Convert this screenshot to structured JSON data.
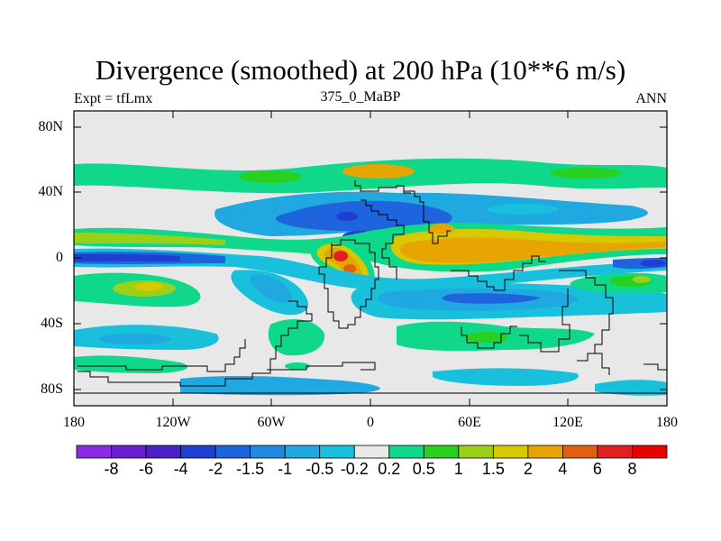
{
  "title": "Divergence (smoothed) at 200 hPa (10**6 m/s)",
  "subtitle_left": "Expt = tfLmx",
  "subtitle_center": "375_0_MaBP",
  "subtitle_right": "ANN",
  "y_axis_labels": [
    "80N",
    "40N",
    "0",
    "40S",
    "80S"
  ],
  "x_axis_labels": [
    "180",
    "120W",
    "60W",
    "0",
    "60E",
    "120E",
    "180"
  ],
  "colorbar": {
    "labels": [
      "-8",
      "-6",
      "-4",
      "-2",
      "-1.5",
      "-1",
      "-0.5",
      "-0.2",
      "0.2",
      "0.5",
      "1",
      "1.5",
      "2",
      "4",
      "6",
      "8"
    ],
    "colors": [
      "#8a2be2",
      "#6a1fd0",
      "#4b20c8",
      "#1f3fd0",
      "#1e64dc",
      "#2288e0",
      "#20a8e0",
      "#18c0dc",
      "#e8e8e8",
      "#10d88a",
      "#28d020",
      "#9ad018",
      "#d8c800",
      "#e8a400",
      "#e06010",
      "#e02020",
      "#e80000"
    ]
  },
  "colors": {
    "background": "#ffffff",
    "land_outline": "#000000",
    "neutral": "#e8e8e8"
  }
}
